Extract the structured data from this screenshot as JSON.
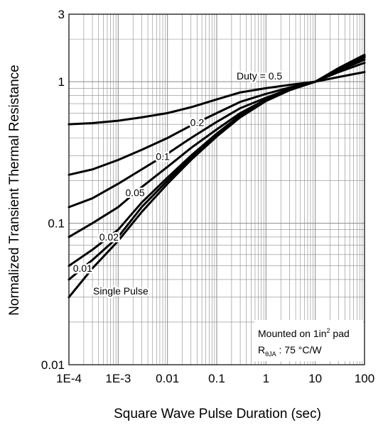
{
  "chart_data": {
    "type": "line",
    "xlabel": "Square Wave Pulse Duration (sec)",
    "ylabel": "Normalized Transient Thermal Resistance",
    "xscale": "log",
    "yscale": "log",
    "xlim": [
      0.0001,
      100
    ],
    "ylim": [
      0.01,
      3
    ],
    "x_ticks": [
      {
        "value": 0.0001,
        "label": "1E-4"
      },
      {
        "value": 0.001,
        "label": "1E-3"
      },
      {
        "value": 0.01,
        "label": "0.01"
      },
      {
        "value": 0.1,
        "label": "0.1"
      },
      {
        "value": 1,
        "label": "1"
      },
      {
        "value": 10,
        "label": "10"
      },
      {
        "value": 100,
        "label": "100"
      }
    ],
    "y_ticks": [
      {
        "value": 0.01,
        "label": "0.01"
      },
      {
        "value": 0.1,
        "label": "0.1"
      },
      {
        "value": 1,
        "label": "1"
      },
      {
        "value": 3,
        "label": "3"
      }
    ],
    "grid": true,
    "x": [
      0.0001,
      0.0003,
      0.001,
      0.003,
      0.01,
      0.03,
      0.1,
      0.3,
      1,
      3,
      10,
      30,
      100
    ],
    "series": [
      {
        "name": "0.5",
        "values": [
          0.5,
          0.51,
          0.53,
          0.56,
          0.6,
          0.66,
          0.75,
          0.84,
          0.9,
          0.95,
          1.0,
          1.08,
          1.17
        ]
      },
      {
        "name": "0.2",
        "values": [
          0.22,
          0.24,
          0.28,
          0.33,
          0.4,
          0.49,
          0.6,
          0.72,
          0.82,
          0.91,
          1.0,
          1.17,
          1.36
        ]
      },
      {
        "name": "0.1",
        "values": [
          0.13,
          0.15,
          0.19,
          0.24,
          0.31,
          0.4,
          0.52,
          0.65,
          0.77,
          0.89,
          1.0,
          1.2,
          1.43
        ]
      },
      {
        "name": "0.05",
        "values": [
          0.08,
          0.1,
          0.13,
          0.18,
          0.25,
          0.34,
          0.46,
          0.6,
          0.75,
          0.88,
          1.0,
          1.22,
          1.48
        ]
      },
      {
        "name": "0.02",
        "values": [
          0.05,
          0.065,
          0.09,
          0.14,
          0.21,
          0.3,
          0.43,
          0.58,
          0.74,
          0.88,
          1.0,
          1.23,
          1.5
        ]
      },
      {
        "name": "0.01",
        "values": [
          0.04,
          0.055,
          0.08,
          0.13,
          0.2,
          0.29,
          0.42,
          0.57,
          0.74,
          0.88,
          1.0,
          1.24,
          1.52
        ]
      },
      {
        "name": "Single Pulse",
        "values": [
          0.03,
          0.048,
          0.075,
          0.12,
          0.19,
          0.28,
          0.41,
          0.56,
          0.73,
          0.87,
          1.0,
          1.25,
          1.55
        ]
      }
    ],
    "annotations": {
      "duty_prefix": "Duty =",
      "mounting_line": "Mounted on 1in",
      "mounting_sup": "2",
      "mounting_suffix": " pad",
      "rth_symbol": "R",
      "rth_sub": "θJA",
      "rth_value": " : 75 °C/W"
    }
  }
}
